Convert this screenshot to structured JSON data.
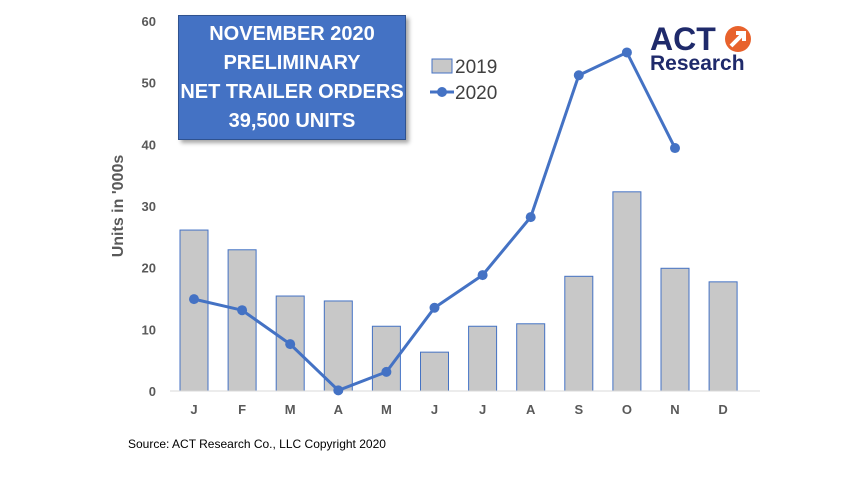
{
  "chart_data": {
    "type": "bar+line",
    "title_lines": [
      "NOVEMBER 2020",
      "PRELIMINARY",
      "NET TRAILER ORDERS",
      "39,500 UNITS"
    ],
    "ylabel": "Units in '000s",
    "xlabel": "",
    "categories": [
      "J",
      "F",
      "M",
      "A",
      "M",
      "J",
      "J",
      "A",
      "S",
      "O",
      "N",
      "D"
    ],
    "yticks": [
      "0",
      "10",
      "20",
      "30",
      "40",
      "50",
      "60"
    ],
    "ylim": [
      0,
      60
    ],
    "grid": false,
    "legend_placement": "top-center",
    "series": [
      {
        "name": "2019",
        "type": "bar",
        "color": "#c8c8c8",
        "values": [
          26.1,
          22.9,
          15.4,
          14.6,
          10.5,
          6.3,
          10.5,
          10.9,
          18.6,
          32.3,
          19.9,
          17.7
        ]
      },
      {
        "name": "2020",
        "type": "line",
        "color": "#4472c4",
        "values": [
          14.9,
          13.1,
          7.6,
          0.1,
          3.1,
          13.5,
          18.8,
          28.2,
          51.2,
          54.9,
          39.4,
          null
        ]
      }
    ]
  },
  "source": "Source: ACT Research Co., LLC  Copyright 2020",
  "logo": {
    "line1": "ACT",
    "line2": "Research",
    "color": "#1f2a6b",
    "accent": "#e8622c"
  }
}
